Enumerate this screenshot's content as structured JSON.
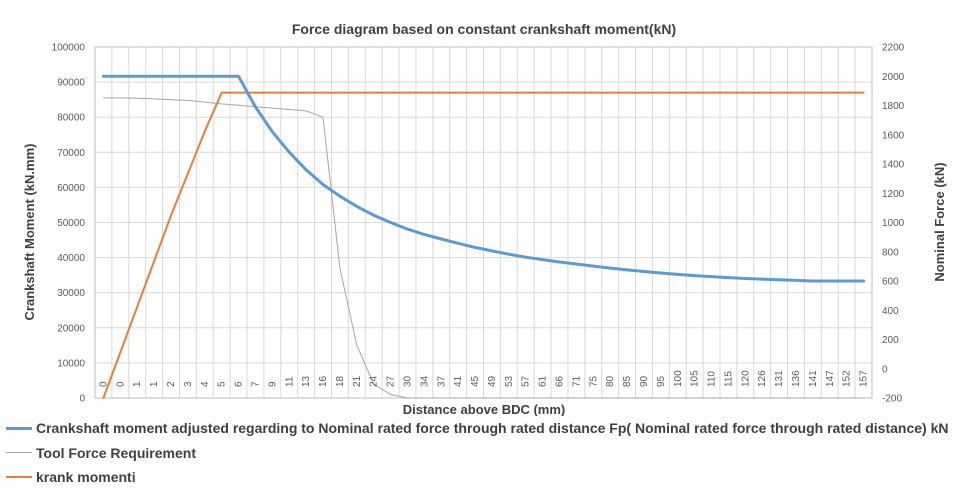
{
  "chart_data": {
    "type": "line",
    "title": "Force diagram based on constant crankshaft moment(kN)",
    "xlabel": "Distance above BDC (mm)",
    "ylabel": "Crankshaft Moment (kN.mm)",
    "y2label": "Nominal Force (kN)",
    "ylim": [
      0,
      100000
    ],
    "y2lim": [
      -200,
      2200
    ],
    "y_ticks": [
      "0",
      "10000",
      "20000",
      "30000",
      "40000",
      "50000",
      "60000",
      "70000",
      "80000",
      "90000",
      "100000"
    ],
    "y2_ticks": [
      "-200",
      "0",
      "200",
      "400",
      "600",
      "800",
      "1000",
      "1200",
      "1400",
      "1600",
      "1800",
      "2000",
      "2200"
    ],
    "grid": true,
    "legend_position": "bottom",
    "x_categories": [
      "0",
      "0",
      "1",
      "1",
      "2",
      "3",
      "4",
      "5",
      "6",
      "7",
      "9",
      "11",
      "13",
      "16",
      "18",
      "21",
      "24",
      "27",
      "30",
      "34",
      "37",
      "41",
      "45",
      "49",
      "53",
      "57",
      "61",
      "66",
      "71",
      "75",
      "80",
      "85",
      "90",
      "95",
      "100",
      "105",
      "110",
      "115",
      "120",
      "126",
      "131",
      "136",
      "141",
      "147",
      "152",
      "157"
    ],
    "series": [
      {
        "name": "Crankshaft moment adjusted regarding to Nominal rated force through rated distance Fp( Nominal rated force through rated distance) kN",
        "axis": "secondary",
        "color": "#5B9BD5",
        "values": [
          2000,
          2000,
          2000,
          2000,
          2000,
          2000,
          2000,
          2000,
          2000,
          1790,
          1620,
          1480,
          1360,
          1260,
          1180,
          1110,
          1050,
          1000,
          955,
          918,
          887,
          858,
          830,
          806,
          783,
          763,
          746,
          730,
          716,
          702,
          688,
          676,
          665,
          655,
          645,
          637,
          630,
          623,
          617,
          613,
          608,
          604,
          600,
          600,
          600,
          600
        ]
      },
      {
        "name": "Tool Force Requirement",
        "axis": "primary",
        "color": "#A5A5A5",
        "values": [
          85500,
          85500,
          85400,
          85200,
          85000,
          84800,
          84300,
          83800,
          83400,
          83000,
          82600,
          82200,
          81800,
          80000,
          37000,
          15000,
          4000,
          1000,
          0,
          0,
          0,
          0,
          0,
          0,
          0,
          0,
          0,
          0,
          0,
          0,
          0,
          0,
          0,
          0,
          0,
          0,
          0,
          0,
          0,
          0,
          0,
          0,
          0,
          0,
          0,
          0
        ]
      },
      {
        "name": "krank momenti",
        "axis": "primary",
        "color": "#ED7D31",
        "values": [
          0,
          13000,
          26000,
          39000,
          52000,
          64000,
          76000,
          87000,
          87000,
          87000,
          87000,
          87000,
          87000,
          87000,
          87000,
          87000,
          87000,
          87000,
          87000,
          87000,
          87000,
          87000,
          87000,
          87000,
          87000,
          87000,
          87000,
          87000,
          87000,
          87000,
          87000,
          87000,
          87000,
          87000,
          87000,
          87000,
          87000,
          87000,
          87000,
          87000,
          87000,
          87000,
          87000,
          87000,
          87000,
          87000
        ]
      }
    ]
  }
}
